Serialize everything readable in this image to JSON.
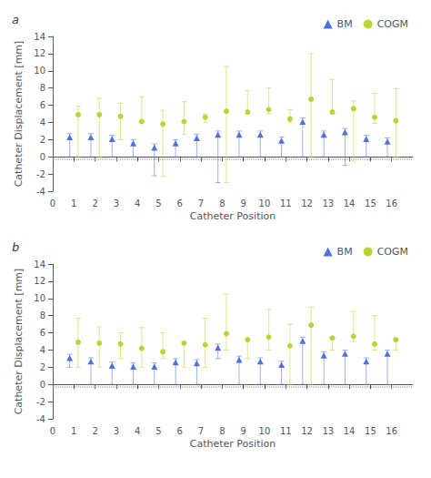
{
  "chart_data": [
    {
      "type": "scatter",
      "title": "a",
      "xlabel": "Catheter Position",
      "ylabel": "Catheter Displacement [mm]",
      "x": [
        1,
        2,
        3,
        4,
        5,
        6,
        7,
        8,
        9,
        10,
        11,
        12,
        13,
        14,
        15,
        16
      ],
      "series": [
        {
          "name": "BM",
          "marker": "triangle",
          "values": [
            2.2,
            2.2,
            2.0,
            1.5,
            1.0,
            1.5,
            2.1,
            2.5,
            2.5,
            2.5,
            1.8,
            4.0,
            2.5,
            2.8,
            2.0,
            1.7
          ],
          "error_low": [
            2.2,
            2.2,
            2.0,
            1.5,
            3.2,
            1.5,
            2.1,
            5.5,
            2.5,
            2.5,
            1.8,
            4.0,
            2.5,
            3.8,
            2.0,
            1.7
          ],
          "error_high": [
            0.5,
            0.5,
            0.5,
            0.5,
            0.5,
            0.5,
            0.5,
            0.5,
            0.5,
            0.5,
            0.5,
            0.5,
            0.5,
            0.5,
            0.5,
            0.5
          ]
        },
        {
          "name": "COGM",
          "marker": "circle",
          "values": [
            4.9,
            4.9,
            4.7,
            4.1,
            3.8,
            4.1,
            4.6,
            5.3,
            5.2,
            5.5,
            4.4,
            6.7,
            5.2,
            5.6,
            4.6,
            4.2
          ],
          "error_low": [
            4.9,
            4.9,
            2.7,
            0.1,
            6.1,
            1.5,
            0.6,
            8.3,
            0.2,
            0.5,
            0.4,
            6.7,
            0.2,
            6.1,
            0.7,
            4.2
          ],
          "error_high": [
            1.0,
            1.9,
            1.5,
            2.9,
            1.6,
            2.3,
            0.4,
            5.2,
            2.5,
            2.5,
            1.1,
            5.3,
            3.8,
            0.9,
            2.8,
            3.7
          ]
        }
      ],
      "reference_line": {
        "value": -0.3,
        "line_style": "dotted"
      },
      "xlim": [
        0,
        17
      ],
      "xticks": [
        0,
        1,
        2,
        3,
        4,
        5,
        6,
        7,
        8,
        9,
        10,
        11,
        12,
        13,
        14,
        15,
        16
      ],
      "ylim": [
        -4,
        14
      ],
      "yticks": [
        -4,
        -2,
        0,
        2,
        4,
        6,
        8,
        10,
        12,
        14
      ],
      "legend": "upper right",
      "grid": false
    },
    {
      "type": "scatter",
      "title": "b",
      "xlabel": "Catheter Position",
      "ylabel": "Catheter Displacement [mm]",
      "x": [
        1,
        2,
        3,
        4,
        5,
        6,
        7,
        8,
        9,
        10,
        11,
        12,
        13,
        14,
        15,
        16
      ],
      "series": [
        {
          "name": "BM",
          "marker": "triangle",
          "values": [
            3.0,
            2.6,
            2.1,
            2.0,
            2.0,
            2.5,
            2.4,
            4.2,
            2.8,
            2.6,
            2.2,
            5.0,
            3.3,
            3.5,
            2.6,
            3.5
          ],
          "error_low": [
            1.0,
            2.6,
            2.1,
            2.0,
            2.0,
            2.5,
            2.4,
            1.2,
            2.8,
            2.6,
            2.2,
            5.0,
            3.3,
            3.5,
            2.6,
            3.5
          ],
          "error_high": [
            0.5,
            0.5,
            0.5,
            0.5,
            0.5,
            0.5,
            0.5,
            0.5,
            0.5,
            0.5,
            0.5,
            0.5,
            0.5,
            0.5,
            0.5,
            0.5
          ]
        },
        {
          "name": "COGM",
          "marker": "circle",
          "values": [
            4.9,
            4.8,
            4.7,
            4.2,
            3.8,
            4.8,
            4.6,
            5.9,
            5.2,
            5.5,
            4.5,
            6.9,
            5.4,
            5.6,
            4.7,
            5.2
          ],
          "error_low": [
            2.9,
            2.8,
            1.7,
            2.2,
            0.8,
            2.8,
            2.6,
            1.9,
            2.2,
            1.5,
            4.5,
            6.9,
            1.4,
            0.6,
            0.7,
            1.2
          ],
          "error_high": [
            2.8,
            1.9,
            1.3,
            2.4,
            2.2,
            0.2,
            3.1,
            4.6,
            0.0,
            3.2,
            2.5,
            2.1,
            0.1,
            2.9,
            3.3,
            0.0
          ]
        }
      ],
      "reference_line": {
        "value": -0.3,
        "line_style": "dotted"
      },
      "xlim": [
        0,
        17
      ],
      "xticks": [
        0,
        1,
        2,
        3,
        4,
        5,
        6,
        7,
        8,
        9,
        10,
        11,
        12,
        13,
        14,
        15,
        16
      ],
      "ylim": [
        -4,
        14
      ],
      "yticks": [
        -4,
        -2,
        0,
        2,
        4,
        6,
        8,
        10,
        12,
        14
      ],
      "legend": "upper right",
      "grid": false
    }
  ]
}
